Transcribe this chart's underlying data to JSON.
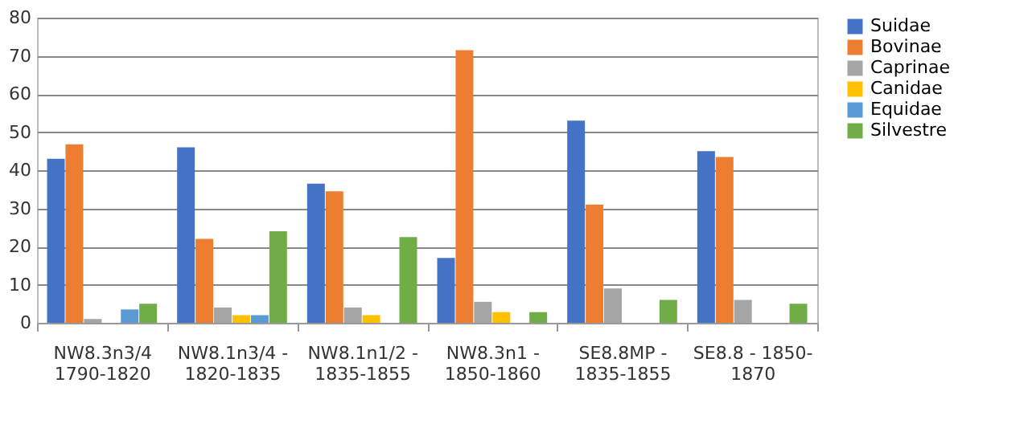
{
  "chart_data": {
    "type": "bar",
    "categories": [
      "NW8.3n3/4\n1790-1820",
      "NW8.1n3/4 -\n1820-1835",
      "NW8.1n1/2 -\n1835-1855",
      "NW8.3n1 -\n1850-1860",
      "SE8.8MP -\n1835-1855",
      "SE8.8 - 1850-\n1870"
    ],
    "series": [
      {
        "name": "Suidae",
        "color": "#4472c4",
        "values": [
          43,
          46,
          36.5,
          17,
          53,
          45
        ]
      },
      {
        "name": "Bovinae",
        "color": "#ed7d31",
        "values": [
          46.8,
          22,
          34.5,
          71.5,
          31,
          43.5
        ]
      },
      {
        "name": "Caprinae",
        "color": "#a5a5a5",
        "values": [
          1,
          4,
          4,
          5.5,
          9,
          6
        ]
      },
      {
        "name": "Canidae",
        "color": "#ffc000",
        "values": [
          0,
          2,
          2,
          2.8,
          0,
          0
        ]
      },
      {
        "name": "Equidae",
        "color": "#5b9bd5",
        "values": [
          3.5,
          2,
          0,
          0,
          0,
          0
        ]
      },
      {
        "name": "Silvestre",
        "color": "#70ad47",
        "values": [
          5,
          24,
          22.5,
          2.8,
          6,
          5
        ]
      }
    ],
    "ylim": [
      0,
      80
    ],
    "yticks": [
      0,
      10,
      20,
      30,
      40,
      50,
      60,
      70,
      80
    ],
    "grid": "y",
    "legend": "right"
  }
}
